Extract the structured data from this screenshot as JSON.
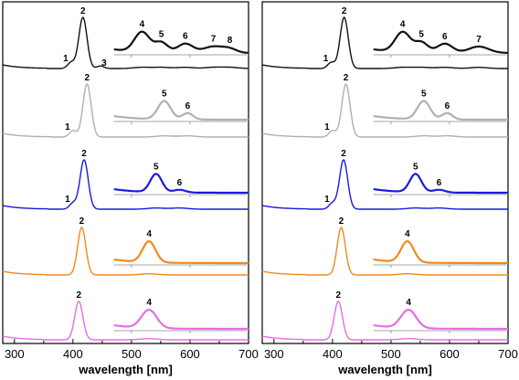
{
  "chart_data": {
    "type": "line",
    "title": "",
    "xlabel": "wavelength [nm]",
    "ylabel": "",
    "xlim": [
      280,
      700
    ],
    "x_ticks": [
      300,
      400,
      500,
      600,
      700
    ],
    "grid": false,
    "colors": {
      "black": "#111111",
      "gray": "#b0b0b0",
      "blue": "#1a1adf",
      "orange": "#f08a1e",
      "magenta": "#e66de6"
    },
    "panels": [
      {
        "name": "left",
        "traces": [
          {
            "color": "black",
            "peaks": [
              {
                "label": "1",
                "x": 397
              },
              {
                "label": "2",
                "x": 417
              },
              {
                "label": "3",
                "x": 447
              }
            ],
            "inset_peaks": [
              {
                "label": "4",
                "x": 518
              },
              {
                "label": "5",
                "x": 551
              },
              {
                "label": "6",
                "x": 592
              },
              {
                "label": "7",
                "x": 640
              },
              {
                "label": "8",
                "x": 668
              }
            ]
          },
          {
            "color": "gray",
            "peaks": [
              {
                "label": "1",
                "x": 400
              },
              {
                "label": "2",
                "x": 424
              }
            ],
            "inset_peaks": [
              {
                "label": "5",
                "x": 556
              },
              {
                "label": "6",
                "x": 596
              }
            ]
          },
          {
            "color": "blue",
            "peaks": [
              {
                "label": "1",
                "x": 400
              },
              {
                "label": "2",
                "x": 419
              }
            ],
            "inset_peaks": [
              {
                "label": "5",
                "x": 542
              },
              {
                "label": "6",
                "x": 582
              }
            ]
          },
          {
            "color": "orange",
            "peaks": [
              {
                "label": "2",
                "x": 415
              }
            ],
            "inset_peaks": [
              {
                "label": "4",
                "x": 530
              }
            ]
          },
          {
            "color": "magenta",
            "peaks": [
              {
                "label": "2",
                "x": 410
              }
            ],
            "inset_peaks": [
              {
                "label": "4",
                "x": 530
              }
            ]
          }
        ]
      },
      {
        "name": "right",
        "traces": [
          {
            "color": "black",
            "peaks": [
              {
                "label": "1",
                "x": 398
              },
              {
                "label": "2",
                "x": 420
              }
            ],
            "inset_peaks": [
              {
                "label": "4",
                "x": 520
              },
              {
                "label": "5",
                "x": 552
              },
              {
                "label": "6",
                "x": 592
              },
              {
                "label": "7",
                "x": 650
              }
            ]
          },
          {
            "color": "gray",
            "peaks": [
              {
                "label": "1",
                "x": 400
              },
              {
                "label": "2",
                "x": 423
              }
            ],
            "inset_peaks": [
              {
                "label": "5",
                "x": 556
              },
              {
                "label": "6",
                "x": 596
              }
            ]
          },
          {
            "color": "blue",
            "peaks": [
              {
                "label": "1",
                "x": 400
              },
              {
                "label": "2",
                "x": 419
              }
            ],
            "inset_peaks": [
              {
                "label": "5",
                "x": 542
              },
              {
                "label": "6",
                "x": 582
              }
            ]
          },
          {
            "color": "orange",
            "peaks": [
              {
                "label": "2",
                "x": 415
              }
            ],
            "inset_peaks": [
              {
                "label": "4",
                "x": 528
              }
            ]
          },
          {
            "color": "magenta",
            "peaks": [
              {
                "label": "2",
                "x": 410
              }
            ],
            "inset_peaks": [
              {
                "label": "4",
                "x": 530
              }
            ]
          }
        ]
      }
    ]
  }
}
